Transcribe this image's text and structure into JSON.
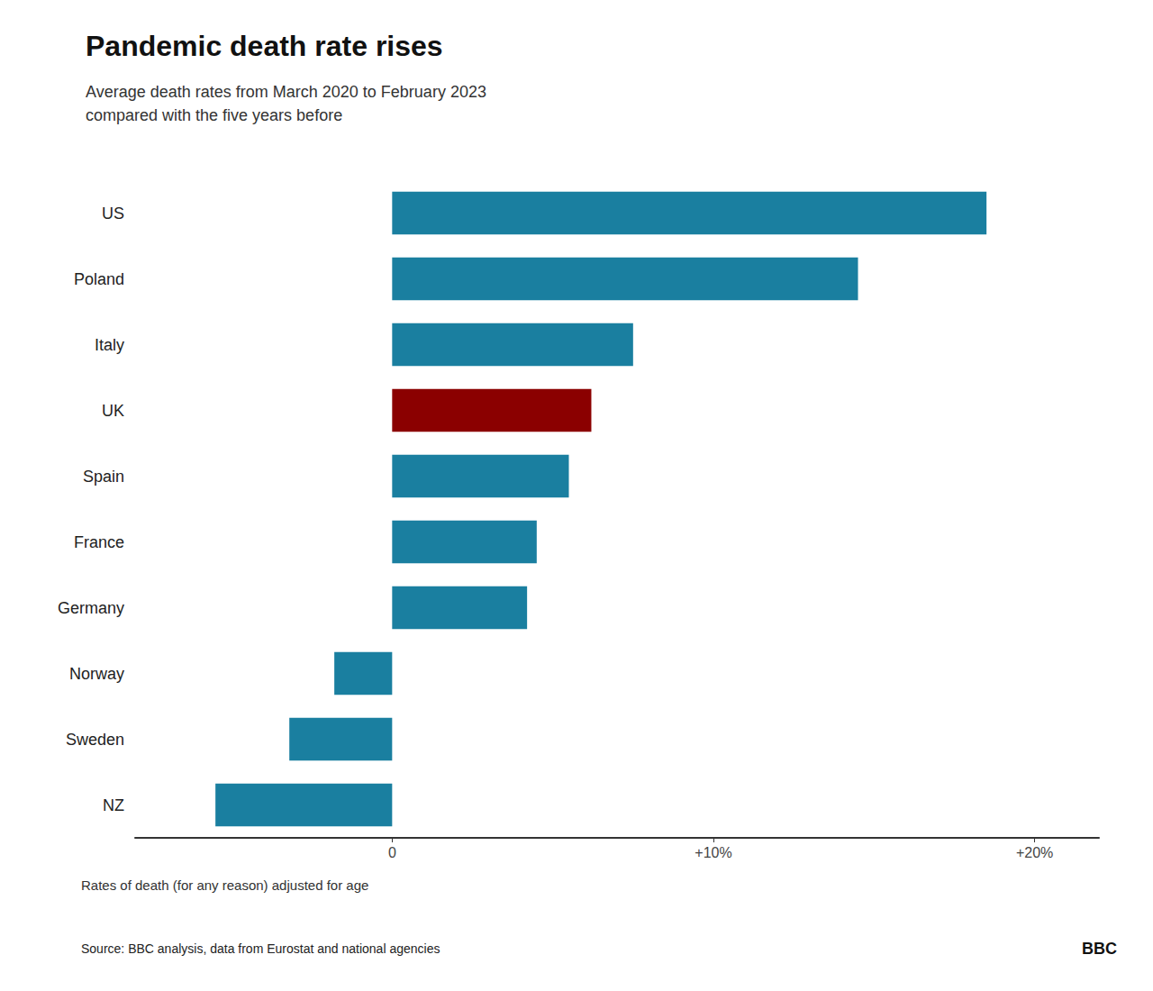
{
  "chart_data": {
    "type": "bar",
    "orientation": "horizontal",
    "title": "Pandemic death rate rises",
    "subtitle": "Average death rates from March 2020 to February 2023\ncompared with the five years before",
    "categories": [
      "US",
      "Poland",
      "Italy",
      "UK",
      "Spain",
      "France",
      "Germany",
      "Norway",
      "Sweden",
      "NZ"
    ],
    "values": [
      18.5,
      14.5,
      7.5,
      6.2,
      5.5,
      4.5,
      4.2,
      -1.8,
      -3.2,
      -5.5
    ],
    "colors": [
      "#1a7fa0",
      "#1a7fa0",
      "#1a7fa0",
      "#8b0000",
      "#1a7fa0",
      "#1a7fa0",
      "#1a7fa0",
      "#1a7fa0",
      "#1a7fa0",
      "#1a7fa0"
    ],
    "xlim": [
      -8,
      22
    ],
    "xticks": [
      0,
      {
        "value": 10,
        "label": "+10%"
      },
      {
        "value": 20,
        "label": "+20%"
      }
    ],
    "grid": false,
    "annotations": [
      "Rates of death (for any reason) adjusted for age",
      "Source: BBC analysis, data from Eurostat and national agencies",
      "BBC"
    ]
  }
}
